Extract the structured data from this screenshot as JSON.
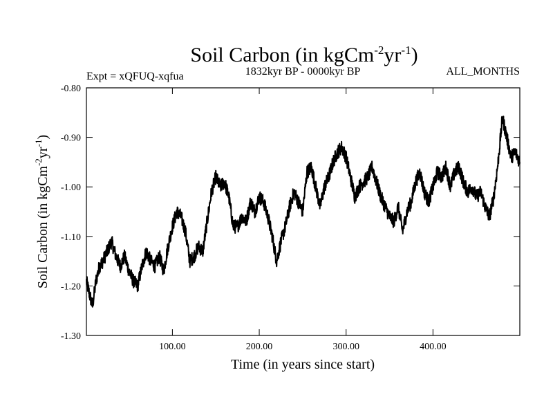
{
  "chart_data": {
    "type": "line",
    "title_main": "Soil Carbon (in kgCm",
    "title_sup1": "-2",
    "title_mid": "yr",
    "title_sup2": "-1",
    "title_end": ")",
    "left_subtitle": "Expt = xQFUQ-xqfua",
    "center_subtitle": "1832kyr BP - 0000kyr BP",
    "right_subtitle": "ALL_MONTHS",
    "xlabel": "Time (in years since start)",
    "ylabel_main": "Soil Carbon (in kgCm",
    "ylabel_sup1": "-2",
    "ylabel_mid": "yr",
    "ylabel_sup2": "-1",
    "ylabel_end": ")",
    "xlim": [
      1,
      500
    ],
    "ylim": [
      -1.3,
      -0.8
    ],
    "x_ticks": [
      100,
      200,
      300,
      400
    ],
    "x_tick_labels": [
      "100.00",
      "200.00",
      "300.00",
      "400.00"
    ],
    "y_ticks": [
      -1.3,
      -1.2,
      -1.1,
      -1.0,
      -0.9,
      -0.8
    ],
    "y_tick_labels": [
      "-1.30",
      "-1.20",
      "-1.10",
      "-1.00",
      "-0.90",
      "-0.80"
    ],
    "series": [
      {
        "name": "Soil Carbon",
        "x": [
          1,
          5,
          8,
          12,
          16,
          20,
          25,
          30,
          35,
          40,
          45,
          50,
          55,
          60,
          65,
          70,
          75,
          80,
          85,
          90,
          95,
          100,
          105,
          110,
          115,
          120,
          125,
          130,
          135,
          140,
          145,
          150,
          155,
          160,
          165,
          170,
          175,
          180,
          185,
          190,
          195,
          200,
          205,
          210,
          215,
          220,
          225,
          230,
          235,
          240,
          245,
          250,
          255,
          260,
          265,
          270,
          275,
          280,
          285,
          290,
          295,
          300,
          305,
          310,
          315,
          320,
          325,
          330,
          335,
          340,
          345,
          350,
          355,
          360,
          365,
          370,
          375,
          380,
          385,
          390,
          395,
          400,
          405,
          410,
          415,
          420,
          425,
          430,
          435,
          440,
          445,
          450,
          455,
          460,
          465,
          470,
          475,
          480,
          485,
          490,
          495,
          500
        ],
        "values": [
          -1.19,
          -1.22,
          -1.24,
          -1.19,
          -1.16,
          -1.15,
          -1.13,
          -1.11,
          -1.14,
          -1.16,
          -1.14,
          -1.17,
          -1.19,
          -1.2,
          -1.16,
          -1.13,
          -1.15,
          -1.16,
          -1.14,
          -1.17,
          -1.12,
          -1.08,
          -1.05,
          -1.06,
          -1.09,
          -1.15,
          -1.14,
          -1.12,
          -1.13,
          -1.07,
          -1.01,
          -0.98,
          -1.0,
          -0.99,
          -1.02,
          -1.08,
          -1.08,
          -1.06,
          -1.07,
          -1.03,
          -1.05,
          -1.02,
          -1.03,
          -1.06,
          -1.1,
          -1.15,
          -1.11,
          -1.08,
          -1.04,
          -1.01,
          -1.03,
          -1.05,
          -0.97,
          -0.96,
          -1.0,
          -1.04,
          -1.0,
          -0.98,
          -0.95,
          -0.93,
          -0.92,
          -0.94,
          -0.98,
          -1.02,
          -1.0,
          -0.99,
          -0.98,
          -0.96,
          -0.99,
          -1.02,
          -1.04,
          -1.06,
          -1.07,
          -1.04,
          -1.09,
          -1.05,
          -1.03,
          -0.99,
          -0.97,
          -1.01,
          -1.03,
          -1.0,
          -0.97,
          -0.98,
          -0.96,
          -1.0,
          -0.97,
          -0.96,
          -0.99,
          -1.01,
          -1.0,
          -1.02,
          -1.01,
          -1.04,
          -1.06,
          -1.02,
          -0.95,
          -0.86,
          -0.9,
          -0.94,
          -0.93,
          -0.95
        ]
      }
    ]
  }
}
